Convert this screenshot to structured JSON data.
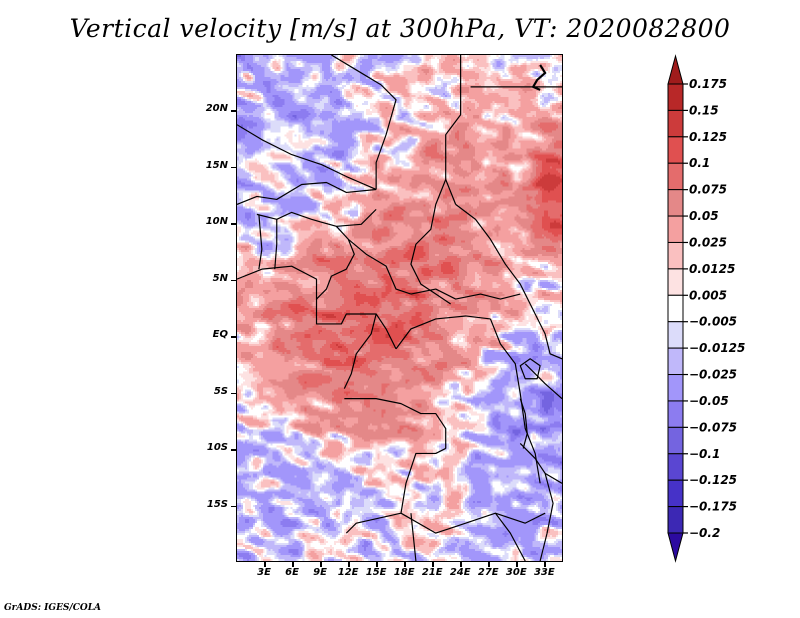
{
  "title": "Vertical velocity [m/s] at 300hPa, VT: 2020082800",
  "footer": "GrADS: IGES/COLA",
  "map": {
    "lon_range": [
      0,
      35
    ],
    "lat_range": [
      -20,
      25
    ],
    "y_ticks": [
      {
        "label": "20N",
        "lat": 20
      },
      {
        "label": "15N",
        "lat": 15
      },
      {
        "label": "10N",
        "lat": 10
      },
      {
        "label": "5N",
        "lat": 5
      },
      {
        "label": "EQ",
        "lat": 0
      },
      {
        "label": "5S",
        "lat": -5
      },
      {
        "label": "10S",
        "lat": -10
      },
      {
        "label": "15S",
        "lat": -15
      }
    ],
    "x_ticks": [
      {
        "label": "3E",
        "lon": 3
      },
      {
        "label": "6E",
        "lon": 6
      },
      {
        "label": "9E",
        "lon": 9
      },
      {
        "label": "12E",
        "lon": 12
      },
      {
        "label": "15E",
        "lon": 15
      },
      {
        "label": "18E",
        "lon": 18
      },
      {
        "label": "21E",
        "lon": 21
      },
      {
        "label": "24E",
        "lon": 24
      },
      {
        "label": "27E",
        "lon": 27
      },
      {
        "label": "30E",
        "lon": 30
      },
      {
        "label": "33E",
        "lon": 33
      }
    ]
  },
  "colorbar": {
    "levels": [
      "0.175",
      "0.15",
      "0.125",
      "0.1",
      "0.075",
      "0.05",
      "0.025",
      "0.0125",
      "0.005",
      "-0.005",
      "-0.0125",
      "-0.025",
      "-0.05",
      "-0.075",
      "-0.1",
      "-0.125",
      "-0.175",
      "-0.2"
    ],
    "colors": [
      "#a01c1c",
      "#b82828",
      "#cc3b3b",
      "#e05050",
      "#e46c6c",
      "#e48888",
      "#f4a0a0",
      "#fac0c0",
      "#fde2e2",
      "#ffffff",
      "#dcdcfa",
      "#c0b8fa",
      "#a296fa",
      "#8c7cf0",
      "#7464e0",
      "#5a46d2",
      "#4632c8",
      "#3c28b4",
      "#2c14a0"
    ],
    "top_arrow_color": "#a01c1c",
    "bottom_arrow_color": "#2c0aa0"
  }
}
